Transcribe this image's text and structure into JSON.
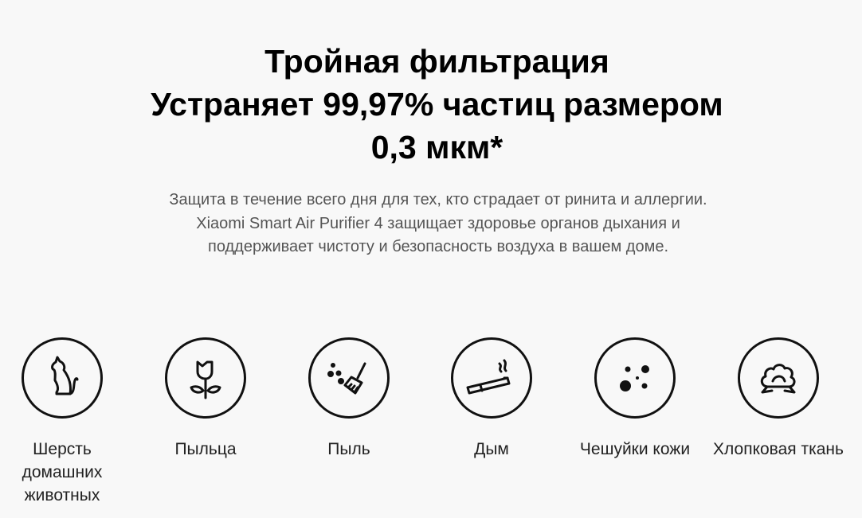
{
  "heading": {
    "line1": "Тройная фильтрация",
    "line2": "Устраняет 99,97% частиц размером",
    "line3": "0,3 мкм*"
  },
  "description": "Защита в течение всего дня для тех, кто страдает от ринита и аллергии. Xiaomi Smart Air Purifier 4 защищает здоровье органов дыхания и поддерживает чистоту и безопасность воздуха в вашем доме.",
  "features": [
    {
      "icon": "cat-icon",
      "label": "Шерсть домашних животных"
    },
    {
      "icon": "flower-icon",
      "label": "Пыльца"
    },
    {
      "icon": "broom-dust-icon",
      "label": "Пыль"
    },
    {
      "icon": "cigarette-icon",
      "label": "Дым"
    },
    {
      "icon": "skin-flakes-icon",
      "label": "Чешуйки кожи"
    },
    {
      "icon": "cotton-icon",
      "label": "Хлопковая ткань"
    }
  ]
}
